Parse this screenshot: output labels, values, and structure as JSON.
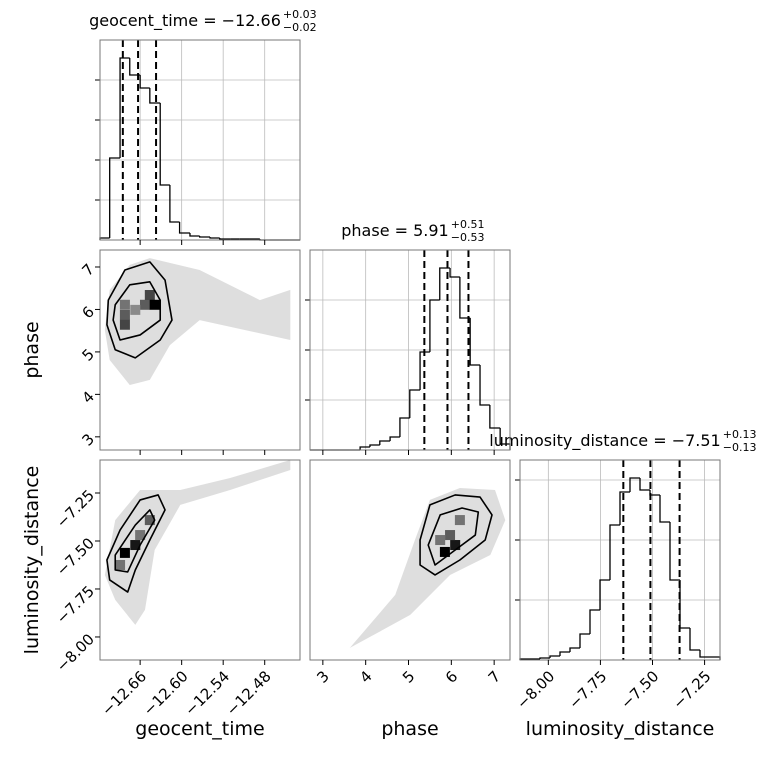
{
  "chart_data": {
    "type": "corner",
    "grid": true,
    "parameters": [
      {
        "label": "geocent_time",
        "title": "geocent_time = −12.66",
        "plus": "+0.03",
        "minus": "−0.02",
        "xlim": [
          -12.718,
          -12.429
        ],
        "ticks": [
          {
            "value": -12.66,
            "label": "−12.66"
          },
          {
            "value": -12.6,
            "label": "−12.60"
          },
          {
            "value": -12.54,
            "label": "−12.54"
          },
          {
            "value": -12.48,
            "label": "−12.48"
          }
        ],
        "quantiles": [
          -12.685,
          -12.663,
          -12.637
        ],
        "hist": {
          "bins": [
            -12.718,
            -12.704,
            -12.689,
            -12.675,
            -12.66,
            -12.646,
            -12.631,
            -12.617,
            -12.603,
            -12.588,
            -12.574,
            -12.559,
            -12.545,
            -12.53,
            -12.516,
            -12.502,
            -12.487,
            -12.473,
            -12.458,
            -12.444,
            -12.429
          ],
          "counts": [
            2,
            82,
            182,
            165,
            152,
            137,
            55,
            18,
            7,
            4,
            3,
            2,
            1,
            1,
            1,
            1,
            0,
            0,
            0,
            0
          ],
          "ylim": [
            0,
            200
          ],
          "yticks": [
            40,
            80,
            120,
            160
          ]
        }
      },
      {
        "label": "phase",
        "title": "phase = 5.91",
        "plus": "+0.51",
        "minus": "−0.53",
        "xlim": [
          2.7,
          7.37
        ],
        "ylim": [
          2.69,
          7.4
        ],
        "ticks": [
          3,
          4,
          5,
          6,
          7
        ],
        "quantiles": [
          5.37,
          5.91,
          6.4
        ],
        "hist": {
          "bins": [
            2.7,
            2.93,
            3.17,
            3.4,
            3.63,
            3.87,
            4.1,
            4.33,
            4.57,
            4.8,
            5.03,
            5.27,
            5.5,
            5.73,
            5.97,
            6.2,
            6.44,
            6.67,
            6.9,
            7.14,
            7.37
          ],
          "counts": [
            0,
            0,
            0,
            0,
            0,
            3,
            5,
            9,
            13,
            32,
            60,
            98,
            150,
            182,
            173,
            132,
            85,
            45,
            22,
            6
          ],
          "ylim": [
            0,
            200
          ],
          "yticks": [
            50,
            100,
            150
          ]
        }
      },
      {
        "label": "luminosity_distance",
        "title": "luminosity_distance = −7.51",
        "plus": "+0.13",
        "minus": "−0.13",
        "xlim": [
          -8.136,
          -7.176
        ],
        "ylim": [
          -8.12,
          -7.078
        ],
        "ticks": [
          {
            "value": -8.0,
            "label": "−8.00"
          },
          {
            "value": -7.75,
            "label": "−7.75"
          },
          {
            "value": -7.5,
            "label": "−7.50"
          },
          {
            "value": -7.25,
            "label": "−7.25"
          }
        ],
        "quantiles": [
          -7.64,
          -7.51,
          -7.37
        ],
        "hist": {
          "bins": [
            -8.136,
            -8.088,
            -8.04,
            -7.992,
            -7.944,
            -7.896,
            -7.848,
            -7.8,
            -7.752,
            -7.704,
            -7.656,
            -7.608,
            -7.56,
            -7.512,
            -7.464,
            -7.416,
            -7.368,
            -7.32,
            -7.272,
            -7.224,
            -7.176
          ],
          "counts": [
            1,
            1,
            2,
            4,
            8,
            12,
            26,
            50,
            80,
            135,
            168,
            182,
            170,
            165,
            138,
            80,
            32,
            10,
            3,
            3
          ],
          "ylim": [
            0,
            200
          ],
          "yticks": [
            60,
            120,
            180
          ]
        }
      }
    ],
    "pairs": [
      [
        {
          "cloud": {
            "x": [
              -12.711,
              -12.704,
              -12.675,
              -12.646,
              -12.574,
              -12.487,
              -12.443,
              -12.443,
              -12.574,
              -12.617,
              -12.646,
              -12.675,
              -12.704
            ],
            "y": [
              5.52,
              6.46,
              7.05,
              7.21,
              6.93,
              6.22,
              6.46,
              5.28,
              5.75,
              5.16,
              4.34,
              4.22,
              4.81
            ]
          },
          "contours": [
            {
              "x": [
                -12.706,
                -12.682,
                -12.646,
                -12.624,
                -12.614,
                -12.631,
                -12.667,
                -12.696,
                -12.708
              ],
              "y": [
                6.22,
                6.93,
                7.12,
                6.69,
                5.75,
                5.28,
                4.86,
                5.05,
                5.64
              ]
            },
            {
              "x": [
                -12.696,
                -12.675,
                -12.646,
                -12.631,
                -12.631,
                -12.66,
                -12.689,
                -12.699
              ],
              "y": [
                6.11,
                6.58,
                6.65,
                6.22,
                5.75,
                5.4,
                5.28,
                5.75
              ]
            }
          ],
          "cells": {
            "x": [
              -12.682,
              -12.682,
              -12.653,
              -12.646,
              -12.639,
              -12.682,
              -12.667
            ],
            "y": [
              5.87,
              6.11,
              6.11,
              6.34,
              6.11,
              5.64,
              5.99
            ],
            "density": [
              0.6,
              0.5,
              0.6,
              0.7,
              1.0,
              0.7,
              0.4
            ]
          }
        }
      ],
      [
        {
          "cloud": {
            "x": [
              -12.711,
              -12.696,
              -12.66,
              -12.602,
              -12.53,
              -12.443,
              -12.443,
              -12.53,
              -12.602,
              -12.639,
              -12.653,
              -12.667,
              -12.696
            ],
            "y": [
              -7.677,
              -7.391,
              -7.234,
              -7.234,
              -7.172,
              -7.078,
              -7.13,
              -7.234,
              -7.312,
              -7.547,
              -7.859,
              -7.937,
              -7.807
            ]
          },
          "contours": [
            {
              "x": [
                -12.708,
                -12.689,
                -12.66,
                -12.634,
                -12.624,
                -12.646,
                -12.667,
                -12.678,
                -12.704
              ],
              "y": [
                -7.599,
                -7.443,
                -7.286,
                -7.26,
                -7.338,
                -7.495,
                -7.651,
                -7.766,
                -7.703
              ]
            },
            {
              "x": [
                -12.696,
                -12.667,
                -12.646,
                -12.639,
                -12.66,
                -12.678,
                -12.696
              ],
              "y": [
                -7.573,
                -7.417,
                -7.338,
                -7.391,
                -7.521,
                -7.661,
                -7.651
              ]
            }
          ],
          "cells": {
            "x": [
              -12.682,
              -12.667,
              -12.646,
              -12.66,
              -12.689
            ],
            "y": [
              -7.562,
              -7.521,
              -7.391,
              -7.469,
              -7.625
            ],
            "density": [
              1.0,
              0.9,
              0.6,
              0.5,
              0.5
            ]
          }
        },
        {
          "cloud": {
            "x": [
              4.69,
              5.15,
              5.5,
              6.2,
              7.02,
              7.26,
              6.91,
              5.97,
              5.04,
              3.63
            ],
            "y": [
              -7.781,
              -7.495,
              -7.286,
              -7.224,
              -7.234,
              -7.391,
              -7.573,
              -7.677,
              -7.885,
              -8.057
            ]
          },
          "contours": [
            {
              "x": [
                5.27,
                5.5,
                6.09,
                6.67,
                6.95,
                6.79,
                6.2,
                5.62,
                5.27
              ],
              "y": [
                -7.495,
                -7.312,
                -7.26,
                -7.271,
                -7.364,
                -7.495,
                -7.599,
                -7.677,
                -7.625
              ]
            },
            {
              "x": [
                5.46,
                5.74,
                6.25,
                6.63,
                6.56,
                6.09,
                5.62
              ],
              "y": [
                -7.521,
                -7.364,
                -7.328,
                -7.349,
                -7.469,
                -7.547,
                -7.625
              ]
            }
          ],
          "cells": {
            "x": [
              5.85,
              6.09,
              5.97,
              6.2,
              5.74
            ],
            "y": [
              -7.557,
              -7.521,
              -7.469,
              -7.391,
              -7.495
            ],
            "density": [
              1.0,
              0.9,
              0.6,
              0.5,
              0.5
            ]
          }
        }
      ]
    ]
  }
}
